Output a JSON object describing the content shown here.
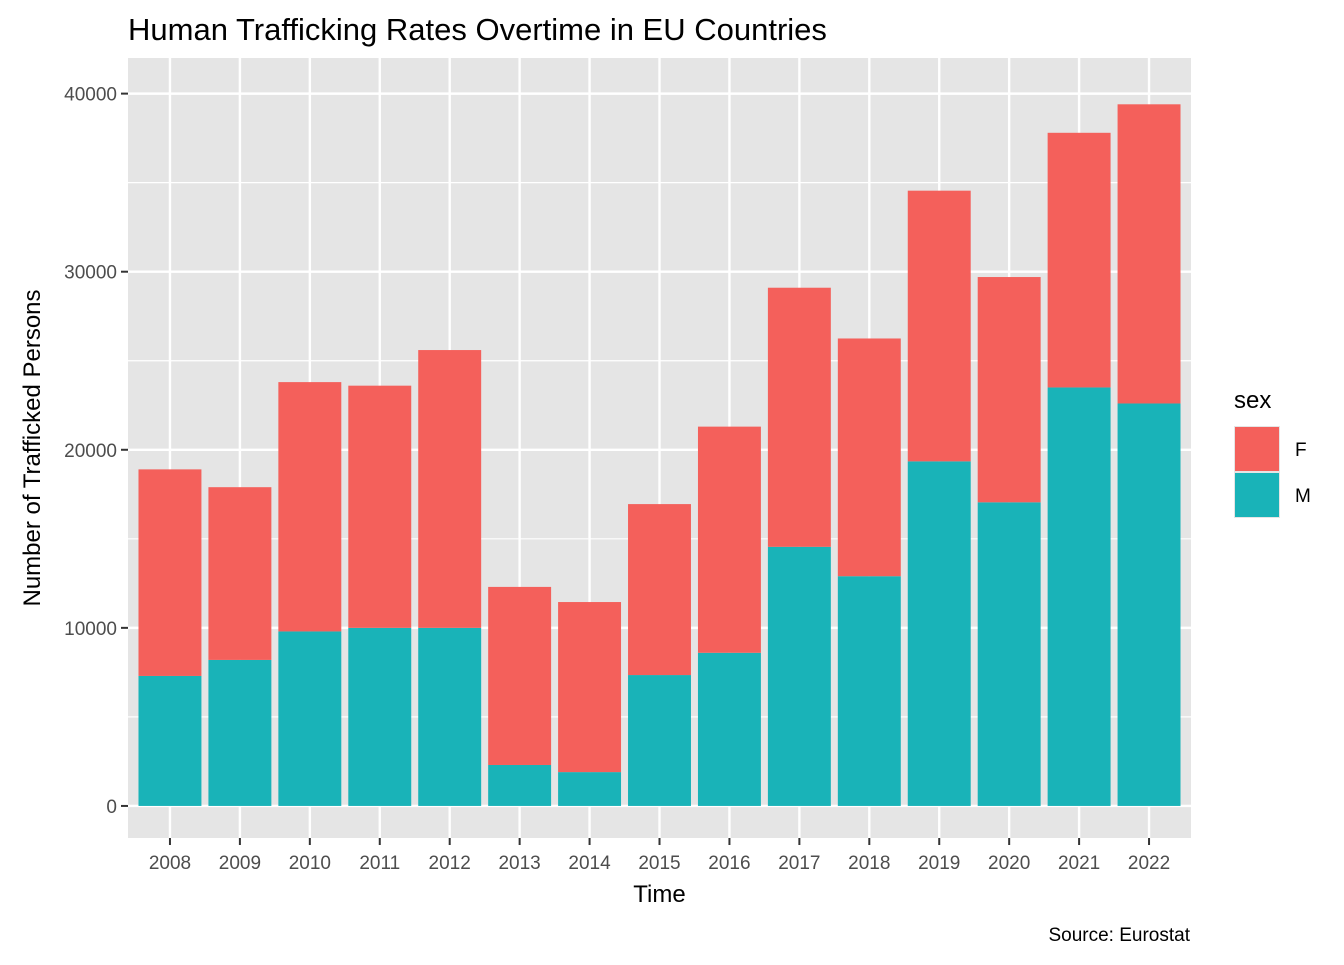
{
  "chart_data": {
    "type": "bar",
    "stacked": true,
    "title": "Human Trafficking Rates Overtime in EU Countries",
    "xlabel": "Time",
    "ylabel": "Number of Trafficked Persons",
    "caption": "Source: Eurostat",
    "categories": [
      "2008",
      "2009",
      "2010",
      "2011",
      "2012",
      "2013",
      "2014",
      "2015",
      "2016",
      "2017",
      "2018",
      "2019",
      "2020",
      "2021",
      "2022"
    ],
    "series": [
      {
        "name": "M",
        "color": "#19b3b8",
        "values": [
          7300,
          8200,
          9800,
          10000,
          10000,
          2300,
          1900,
          7350,
          8600,
          14550,
          12900,
          19350,
          17050,
          23500,
          22600
        ]
      },
      {
        "name": "F",
        "color": "#f4605b",
        "values": [
          11600,
          9700,
          14000,
          13600,
          15600,
          10000,
          9550,
          9600,
          12700,
          14550,
          13350,
          15200,
          12650,
          14300,
          16800
        ]
      }
    ],
    "ylim": [
      -1800,
      42000
    ],
    "yticks": [
      0,
      10000,
      20000,
      30000,
      40000
    ],
    "ytick_labels": [
      "0",
      "10000",
      "20000",
      "30000",
      "40000"
    ],
    "legend": {
      "title": "sex",
      "position": "right",
      "entries": [
        "F",
        "M"
      ]
    },
    "grid": true,
    "panel_background": "#e5e5e5",
    "grid_color": "#ffffff"
  }
}
